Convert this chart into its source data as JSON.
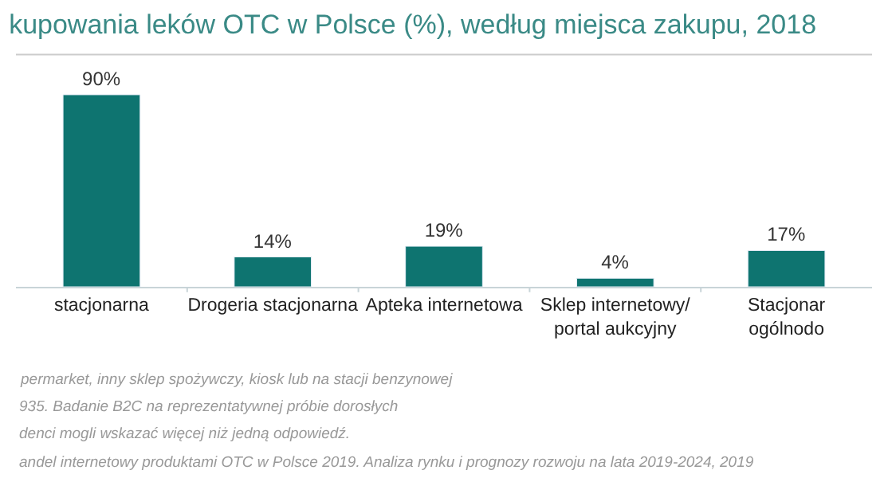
{
  "chart_data": {
    "type": "bar",
    "title": "kupowania leków OTC w Polsce (%), według miejsca zakupu, 2018",
    "categories": [
      "stacjonarna",
      "Drogeria stacjonarna",
      "Apteka internetowa",
      "Sklep internetowy/\nportal aukcyjny",
      "Stacjonar\nogólnodo"
    ],
    "values": [
      90,
      14,
      19,
      4,
      17
    ],
    "color": "#0e7470",
    "value_labels": [
      "90%",
      "14%",
      "19%",
      "4%",
      "17%"
    ],
    "annotations": [
      "permarket, inny sklep spożywczy, kiosk lub na stacji benzynowej",
      "935. Badanie B2C na reprezentatywnej próbie dorosłych",
      "denci mogli wskazać więcej niż jedną odpowiedź.",
      "andel internetowy produktami OTC w Polsce 2019. Analiza rynku i prognozy rozwoju na lata 2019-2024, 2019"
    ],
    "legend": false
  }
}
